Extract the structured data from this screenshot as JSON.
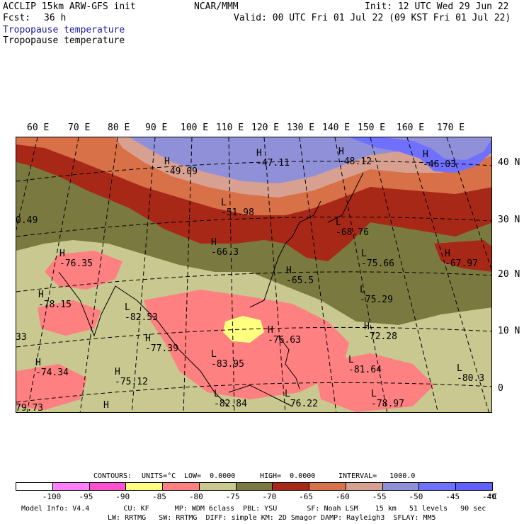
{
  "header": {
    "model_line": "ACCLIP 15km ARW-GFS init",
    "org": "NCAR/MMM",
    "init": "Init: 12 UTC Wed 29 Jun 22",
    "fcst_label": "Fcst:",
    "fcst_value": "36 h",
    "valid": "Valid: 00 UTC Fri 01 Jul 22 (09 KST Fri 01 Jul 22)",
    "field_title_1": "Tropopause temperature",
    "field_title_2": "Tropopause temperature"
  },
  "axes": {
    "longitude_labels": [
      "60 E",
      "70 E",
      "80 E",
      "90 E",
      "100 E",
      "110 E",
      "120 E",
      "130 E",
      "140 E",
      "150 E",
      "160 E",
      "170 E"
    ],
    "latitude_labels": [
      "40 N",
      "30 N",
      "20 N",
      "10 N",
      "0"
    ]
  },
  "map_labels": [
    {
      "kind": "H",
      "value": "-49.09"
    },
    {
      "kind": "H",
      "value": "-47.11"
    },
    {
      "kind": "H",
      "value": "-48.12"
    },
    {
      "kind": "H",
      "value": "-46.03"
    },
    {
      "kind": "L",
      "value": "-51.98"
    },
    {
      "kind": "",
      "value": "0.49"
    },
    {
      "kind": "H",
      "value": "-76.35"
    },
    {
      "kind": "H",
      "value": "-66.3"
    },
    {
      "kind": "L",
      "value": "-68.76"
    },
    {
      "kind": "L",
      "value": "-75.66"
    },
    {
      "kind": "H",
      "value": "-67.97"
    },
    {
      "kind": "H",
      "value": "-78.15"
    },
    {
      "kind": "L",
      "value": "-82.53"
    },
    {
      "kind": "H",
      "value": "-65.5"
    },
    {
      "kind": "L",
      "value": "-75.29"
    },
    {
      "kind": "H",
      "value": "-72.28"
    },
    {
      "kind": "",
      "value": "33"
    },
    {
      "kind": "H",
      "value": "-77.39"
    },
    {
      "kind": "H",
      "value": "-76.63"
    },
    {
      "kind": "H",
      "value": "-74.34"
    },
    {
      "kind": "H",
      "value": "-75.12"
    },
    {
      "kind": "L",
      "value": "-83.95"
    },
    {
      "kind": "L",
      "value": "-81.64"
    },
    {
      "kind": "L",
      "value": "-80.3"
    },
    {
      "kind": "",
      "value": "79.73"
    },
    {
      "kind": "H",
      "value": ""
    },
    {
      "kind": "L",
      "value": "-82.84"
    },
    {
      "kind": "L",
      "value": "-76.22"
    },
    {
      "kind": "L",
      "value": "-78.97"
    }
  ],
  "contours_info": {
    "label": "CONTOURS:",
    "units": "UNITS=°C",
    "low": "LOW=  0.0000",
    "high": "HIGH=  0.0000",
    "interval": "INTERVAL=   1000.0"
  },
  "colorbar": {
    "colors": [
      "#ffffff",
      "#ff80ff",
      "#ff50d0",
      "#ffff80",
      "#ff8080",
      "#c8c890",
      "#7a7a40",
      "#a82818",
      "#d87048",
      "#d8a090",
      "#9090d8",
      "#7070ff",
      "#6060ff"
    ],
    "ticks": [
      "-100",
      "-95",
      "-90",
      "-85",
      "-80",
      "-75",
      "-70",
      "-65",
      "-60",
      "-55",
      "-50",
      "-45",
      "-40"
    ],
    "unit": "°C"
  },
  "footer": {
    "line1": "Model Info: V4.4        CU: KF      MP: WDM 6class  PBL: YSU       SF: Noah LSM    15 km   51 levels   90 sec",
    "line2": "LW: RRTMG   SW: RRTMG  DIFF: simple KM: 2D Smagor DAMP: Rayleigh3  SFLAY: MM5"
  }
}
